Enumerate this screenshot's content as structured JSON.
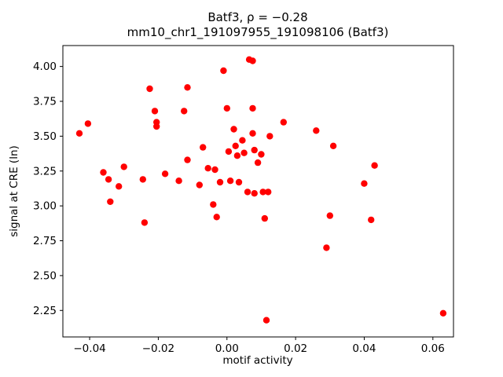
{
  "chart_data": {
    "type": "scatter",
    "title": "Batf3, ρ = −0.28",
    "subtitle": "mm10_chr1_191097955_191098106 (Batf3)",
    "xlabel": "motif activity",
    "ylabel": "signal at CRE (ln)",
    "legend": null,
    "grid": false,
    "xlim": [
      -0.0478,
      0.066
    ],
    "ylim": [
      2.06,
      4.15
    ],
    "x_ticks": [
      -0.04,
      -0.02,
      0.0,
      0.02,
      0.04,
      0.06
    ],
    "x_tick_labels": [
      "−0.04",
      "−0.02",
      "0.00",
      "0.02",
      "0.04",
      "0.06"
    ],
    "y_ticks": [
      2.25,
      2.5,
      2.75,
      3.0,
      3.25,
      3.5,
      3.75,
      4.0
    ],
    "y_tick_labels": [
      "2.25",
      "2.50",
      "2.75",
      "3.00",
      "3.25",
      "3.50",
      "3.75",
      "4.00"
    ],
    "marker_color": "#ff0000",
    "marker_radius": 4.2,
    "points": [
      [
        -0.043,
        3.52
      ],
      [
        -0.0405,
        3.59
      ],
      [
        -0.036,
        3.24
      ],
      [
        -0.0345,
        3.19
      ],
      [
        -0.034,
        3.03
      ],
      [
        -0.0315,
        3.14
      ],
      [
        -0.03,
        3.28
      ],
      [
        -0.0245,
        3.19
      ],
      [
        -0.024,
        2.88
      ],
      [
        -0.0225,
        3.84
      ],
      [
        -0.021,
        3.68
      ],
      [
        -0.0205,
        3.6
      ],
      [
        -0.0205,
        3.57
      ],
      [
        -0.018,
        3.23
      ],
      [
        -0.014,
        3.18
      ],
      [
        -0.0125,
        3.68
      ],
      [
        -0.0115,
        3.85
      ],
      [
        -0.0115,
        3.33
      ],
      [
        -0.008,
        3.15
      ],
      [
        -0.007,
        3.42
      ],
      [
        -0.0055,
        3.27
      ],
      [
        -0.004,
        3.01
      ],
      [
        -0.0035,
        3.26
      ],
      [
        -0.003,
        2.92
      ],
      [
        -0.002,
        3.17
      ],
      [
        -0.001,
        3.97
      ],
      [
        0.0,
        3.7
      ],
      [
        0.0005,
        3.39
      ],
      [
        0.001,
        3.18
      ],
      [
        0.002,
        3.55
      ],
      [
        0.0025,
        3.43
      ],
      [
        0.003,
        3.36
      ],
      [
        0.0035,
        3.17
      ],
      [
        0.0045,
        3.47
      ],
      [
        0.005,
        3.38
      ],
      [
        0.006,
        3.1
      ],
      [
        0.0065,
        4.05
      ],
      [
        0.0075,
        4.04
      ],
      [
        0.0075,
        3.7
      ],
      [
        0.0075,
        3.52
      ],
      [
        0.008,
        3.4
      ],
      [
        0.008,
        3.09
      ],
      [
        0.009,
        3.31
      ],
      [
        0.01,
        3.37
      ],
      [
        0.0105,
        3.1
      ],
      [
        0.011,
        2.91
      ],
      [
        0.0115,
        2.18
      ],
      [
        0.012,
        3.1
      ],
      [
        0.0125,
        3.5
      ],
      [
        0.0165,
        3.6
      ],
      [
        0.026,
        3.54
      ],
      [
        0.029,
        2.7
      ],
      [
        0.03,
        2.93
      ],
      [
        0.031,
        3.43
      ],
      [
        0.04,
        3.16
      ],
      [
        0.042,
        2.9
      ],
      [
        0.043,
        3.29
      ],
      [
        0.063,
        2.23
      ]
    ]
  }
}
